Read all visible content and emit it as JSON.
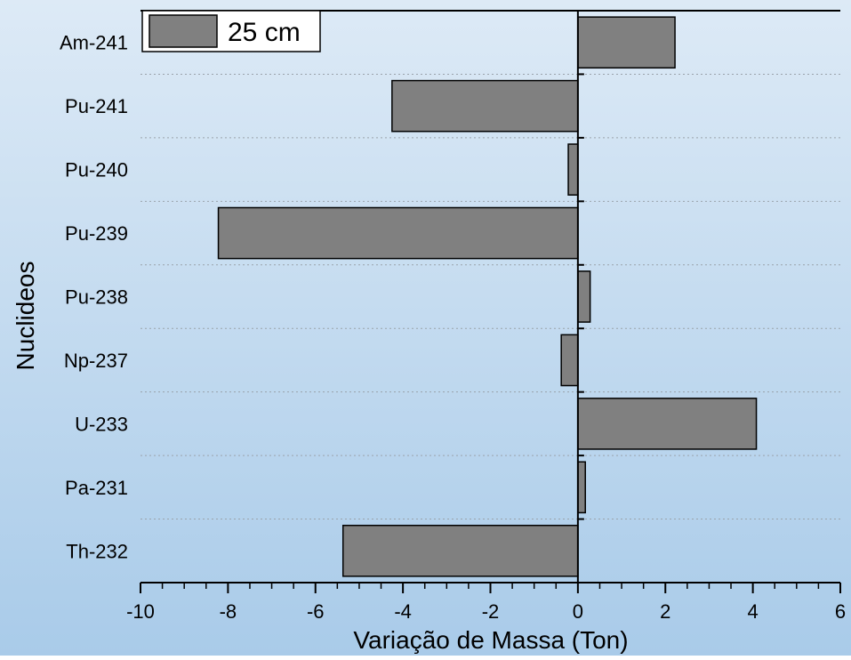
{
  "chart_data": {
    "type": "bar",
    "orientation": "horizontal",
    "categories": [
      "Am-241",
      "Pu-241",
      "Pu-240",
      "Pu-239",
      "Pu-238",
      "Np-237",
      "U-233",
      "Pa-231",
      "Th-232"
    ],
    "series": [
      {
        "name": "25 cm",
        "values": [
          2.22,
          -4.25,
          -0.22,
          -8.22,
          0.28,
          -0.38,
          4.08,
          0.17,
          -5.37
        ],
        "color": "#808080"
      }
    ],
    "xlabel": "Variação de Massa (Ton)",
    "ylabel": "Nuclideos",
    "xlim": [
      -10,
      6
    ],
    "x_ticks": [
      -10,
      -8,
      -6,
      -4,
      -2,
      0,
      2,
      4,
      6
    ],
    "x_tick_labels": [
      "-10",
      "-8",
      "-6",
      "-4",
      "-2",
      "0",
      "2",
      "4",
      "6"
    ],
    "legend_position": "top-left",
    "grid": "horizontal dotted"
  }
}
